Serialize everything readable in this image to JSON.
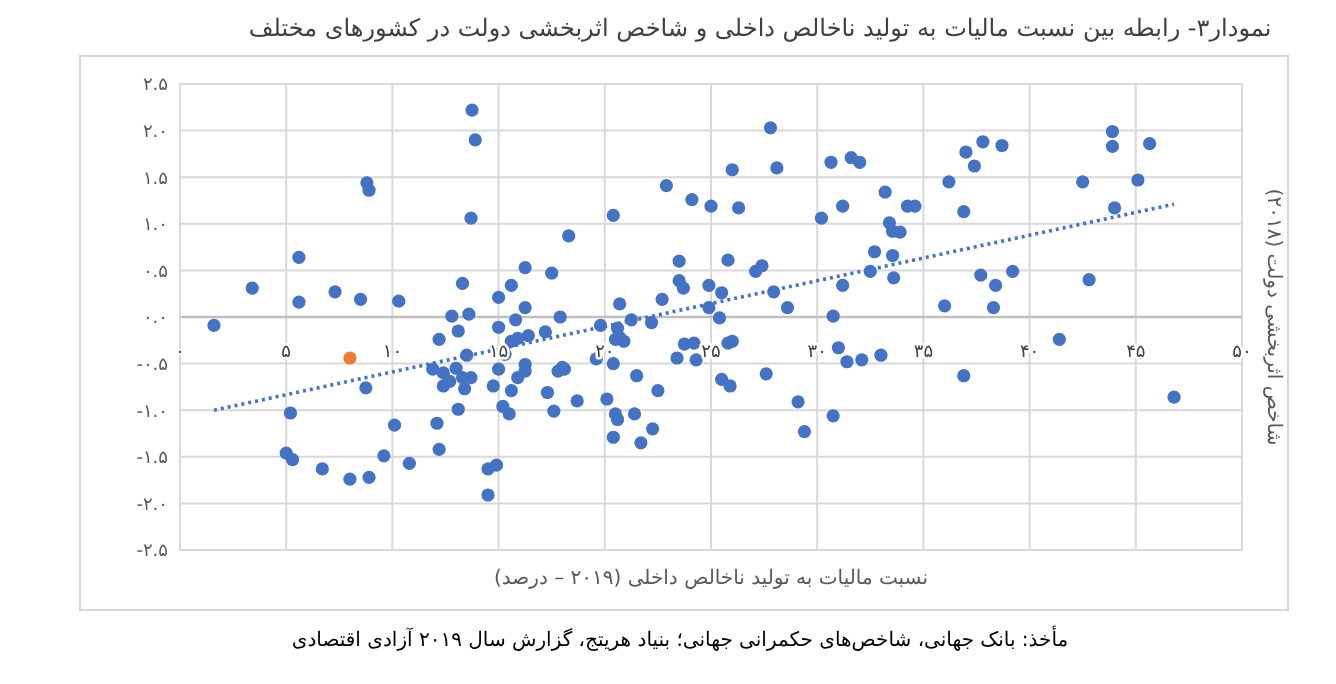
{
  "chart_data": {
    "type": "scatter",
    "title": "نمودار۳- رابطه بین نسبت مالیات به تولید ناخالص داخلی و شاخص اثربخشی دولت در کشورهای مختلف",
    "xlabel": "نسبت مالیات به تولید ناخالص داخلی (۲۰۱۹ – درصد)",
    "ylabel": "شاخص اثربخشی دولت (۲۰۱۸)",
    "annotations": [
      "مأخذ: بانک جهانی، شاخص‌های حکمرانی جهانی؛ بنیاد هریتج، گزارش سال ۲۰۱۹ آزادی اقتصادی"
    ],
    "xlim": [
      0,
      50
    ],
    "ylim": [
      -2.5,
      2.5
    ],
    "xticks": [
      {
        "value": 0,
        "label": "۰"
      },
      {
        "value": 5,
        "label": "۵"
      },
      {
        "value": 10,
        "label": "۱۰"
      },
      {
        "value": 15,
        "label": "۱۵"
      },
      {
        "value": 20,
        "label": "۲۰"
      },
      {
        "value": 25,
        "label": "۲۵"
      },
      {
        "value": 30,
        "label": "۳۰"
      },
      {
        "value": 35,
        "label": "۳۵"
      },
      {
        "value": 40,
        "label": "۴۰"
      },
      {
        "value": 45,
        "label": "۴۵"
      },
      {
        "value": 50,
        "label": "۵۰"
      }
    ],
    "yticks": [
      {
        "value": -2.5,
        "label": "-۲.۵"
      },
      {
        "value": -2,
        "label": "-۲.۰"
      },
      {
        "value": -1.5,
        "label": "-۱.۵"
      },
      {
        "value": -1,
        "label": "-۱.۰"
      },
      {
        "value": -0.5,
        "label": "-۰.۵"
      },
      {
        "value": 0,
        "label": "۰.۰"
      },
      {
        "value": 0.5,
        "label": "۰.۵"
      },
      {
        "value": 1,
        "label": "۱.۰"
      },
      {
        "value": 1.5,
        "label": "۱.۵"
      },
      {
        "value": 2,
        "label": "۲.۰"
      },
      {
        "value": 2.5,
        "label": "۲.۵"
      }
    ],
    "grid": true,
    "marker": "circle",
    "series": [
      {
        "color": "#4472c4",
        "x": [
          1.6,
          3.4,
          5.6,
          5.6,
          7.3,
          8.5,
          10.3,
          8.8,
          8.9,
          8.75,
          5.2,
          5.0,
          5.3,
          6.7,
          8.0,
          8.9,
          9.6,
          10.1,
          10.8,
          12.1,
          12.2,
          12.2,
          11.9,
          12.8,
          13.1,
          13.3,
          13.6,
          13.75,
          13.9,
          13.7,
          13.5,
          13.7,
          13.1,
          12.4,
          12.7,
          13.0,
          13.3,
          13.4,
          12.4,
          15.0,
          15.0,
          15.6,
          15.8,
          16.25,
          16.25,
          15.6,
          15.9,
          16.4,
          15.3,
          16.25,
          16.25,
          15.9,
          15.0,
          14.75,
          15.6,
          15.2,
          15.5,
          14.5,
          14.9,
          14.5,
          17.2,
          17.5,
          17.9,
          18.3,
          17.3,
          17.6,
          17.8,
          18.0,
          18.1,
          18.7,
          19.6,
          19.8,
          20.1,
          20.4,
          20.4,
          20.7,
          20.6,
          20.7,
          20.9,
          20.5,
          21.25,
          21.5,
          20.5,
          20.6,
          20.4,
          21.4,
          21.7,
          22.25,
          22.5,
          22.2,
          22.7,
          22.9,
          23.5,
          23.5,
          23.7,
          24.1,
          23.4,
          23.75,
          24.2,
          24.3,
          25.0,
          24.9,
          24.9,
          25.4,
          25.5,
          25.8,
          26.0,
          26.3,
          25.8,
          26.0,
          25.5,
          25.9,
          27.1,
          27.4,
          27.8,
          28.1,
          27.95,
          28.6,
          27.6,
          29.1,
          29.4,
          30.2,
          30.65,
          31.2,
          31.6,
          32.0,
          31.2,
          30.75,
          31.0,
          31.4,
          32.1,
          30.75,
          32.5,
          32.7,
          33.0,
          33.2,
          33.4,
          33.55,
          33.9,
          33.55,
          33.6,
          34.25,
          34.6,
          36.0,
          36.2,
          37.0,
          37.4,
          37.8,
          38.7,
          36.9,
          37.7,
          38.4,
          39.2,
          38.3,
          36.9,
          41.4,
          42.5,
          42.8,
          43.9,
          43.9,
          44.0,
          45.1,
          45.65,
          46.8
        ],
        "values": [
          -0.09,
          0.31,
          0.64,
          0.16,
          0.27,
          0.19,
          0.17,
          1.44,
          1.36,
          -0.76,
          -1.03,
          -1.46,
          -1.53,
          -1.63,
          -1.74,
          -1.72,
          -1.49,
          -1.16,
          -1.57,
          -1.14,
          -1.42,
          -0.24,
          -0.56,
          0.01,
          -0.15,
          0.36,
          0.03,
          2.22,
          1.9,
          1.06,
          -0.41,
          -0.65,
          -0.99,
          -0.6,
          -0.69,
          -0.55,
          -0.65,
          -0.77,
          -0.74,
          0.21,
          -0.11,
          0.34,
          -0.03,
          0.53,
          0.1,
          -0.26,
          -0.23,
          -0.2,
          -0.4,
          -0.51,
          -0.58,
          -0.65,
          -0.56,
          -0.74,
          -0.79,
          -0.96,
          -1.04,
          -1.63,
          -1.59,
          -1.91,
          -0.16,
          0.47,
          0.0,
          0.87,
          -0.81,
          -1.01,
          -0.58,
          -0.54,
          -0.56,
          -0.9,
          -0.45,
          -0.09,
          -0.88,
          -0.5,
          1.09,
          0.14,
          -0.12,
          -0.22,
          -0.26,
          -0.24,
          -0.03,
          -0.63,
          -1.04,
          -1.1,
          -1.29,
          -1.04,
          -1.35,
          -1.2,
          -0.79,
          -0.06,
          0.19,
          1.41,
          0.6,
          0.39,
          0.31,
          1.26,
          -0.44,
          -0.29,
          -0.28,
          -0.46,
          1.19,
          0.34,
          0.1,
          -0.01,
          0.26,
          0.61,
          1.58,
          1.17,
          -0.28,
          -0.26,
          -0.67,
          -0.74,
          0.49,
          0.55,
          2.03,
          1.6,
          0.27,
          0.1,
          -0.61,
          -0.91,
          -1.23,
          1.06,
          1.66,
          1.19,
          1.71,
          1.66,
          0.34,
          0.01,
          -0.33,
          -0.48,
          -0.46,
          -1.06,
          0.49,
          0.7,
          -0.41,
          1.34,
          1.01,
          0.92,
          0.91,
          0.66,
          0.42,
          1.19,
          1.19,
          0.12,
          1.45,
          1.77,
          1.62,
          1.88,
          1.84,
          1.13,
          0.45,
          0.34,
          0.49,
          0.1,
          -0.63,
          -0.24,
          1.45,
          0.4,
          1.99,
          1.83,
          1.17,
          1.47,
          1.86,
          -0.86
        ]
      },
      {
        "color": "#ed7d31",
        "x": [
          8.0
        ],
        "values": [
          -0.44
        ]
      },
      {
        "type": "line",
        "color": "#4472c4",
        "line_style": "dotted",
        "marker": "none",
        "x": [
          1.6,
          46.8
        ],
        "values": [
          -1.0,
          1.21
        ]
      }
    ]
  }
}
